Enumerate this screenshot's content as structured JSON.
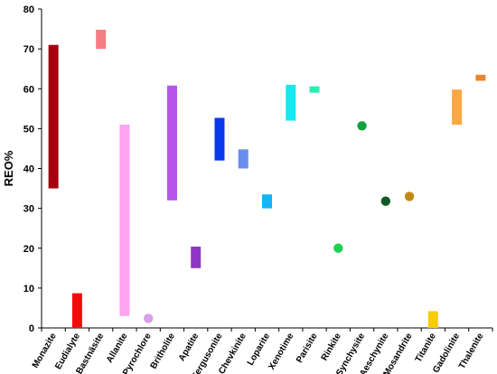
{
  "chart_data": {
    "type": "bar",
    "title": "",
    "xlabel": "",
    "ylabel": "REO%",
    "ylim": [
      0,
      80
    ],
    "yticks": [
      0,
      10,
      20,
      30,
      40,
      50,
      60,
      70,
      80
    ],
    "grid": false,
    "legend": "none",
    "categories": [
      "Monazite",
      "Eudialyte",
      "Bastnäsite",
      "Allanite",
      "Pyrochlore",
      "Britholite",
      "Apatite",
      "Fergusonite",
      "Chevkinite",
      "Loparite",
      "Xenotime",
      "Parisite",
      "Rinkite",
      "Synchysite",
      "Aeschynite",
      "Mosandrite",
      "Titanite",
      "Gadolinite",
      "Thalenite"
    ],
    "ranges": [
      {
        "mineral": "Monazite",
        "kind": "range",
        "low": 35,
        "high": 71,
        "color": "#a50010"
      },
      {
        "mineral": "Eudialyte",
        "kind": "range",
        "low": 0,
        "high": 8.7,
        "color": "#f20d0d"
      },
      {
        "mineral": "Bastnäsite",
        "kind": "range",
        "low": 70,
        "high": 74.8,
        "color": "#f37d80"
      },
      {
        "mineral": "Allanite",
        "kind": "range",
        "low": 3,
        "high": 51,
        "color": "#fca4f0"
      },
      {
        "mineral": "Pyrochlore",
        "kind": "point",
        "value": 2.4,
        "color": "#d8a0e6"
      },
      {
        "mineral": "Britholite",
        "kind": "range",
        "low": 32,
        "high": 60.8,
        "color": "#b656ea"
      },
      {
        "mineral": "Apatite",
        "kind": "range",
        "low": 15,
        "high": 20.4,
        "color": "#8e35c8"
      },
      {
        "mineral": "Fergusonite",
        "kind": "range",
        "low": 42,
        "high": 52.7,
        "color": "#0a39ee"
      },
      {
        "mineral": "Chevkinite",
        "kind": "range",
        "low": 40,
        "high": 44.8,
        "color": "#6a8df0"
      },
      {
        "mineral": "Loparite",
        "kind": "range",
        "low": 30,
        "high": 33.5,
        "color": "#14b4f5"
      },
      {
        "mineral": "Xenotime",
        "kind": "range",
        "low": 52,
        "high": 61,
        "color": "#14e8f0"
      },
      {
        "mineral": "Parisite",
        "kind": "range",
        "low": 59,
        "high": 60.6,
        "color": "#24eeb0"
      },
      {
        "mineral": "Rinkite",
        "kind": "point",
        "value": 20,
        "color": "#1fd052"
      },
      {
        "mineral": "Synchysite",
        "kind": "point",
        "value": 50.7,
        "color": "#15a040"
      },
      {
        "mineral": "Aeschynite",
        "kind": "point",
        "value": 31.8,
        "color": "#0d5a24"
      },
      {
        "mineral": "Mosandrite",
        "kind": "point",
        "value": 33,
        "color": "#c08a12"
      },
      {
        "mineral": "Titanite",
        "kind": "range",
        "low": 0,
        "high": 4.2,
        "color": "#f8cc08"
      },
      {
        "mineral": "Gadolinite",
        "kind": "range",
        "low": 51,
        "high": 59.8,
        "color": "#f9a842"
      },
      {
        "mineral": "Thalenite",
        "kind": "range",
        "low": 62,
        "high": 63.5,
        "color": "#e8862c"
      }
    ]
  }
}
